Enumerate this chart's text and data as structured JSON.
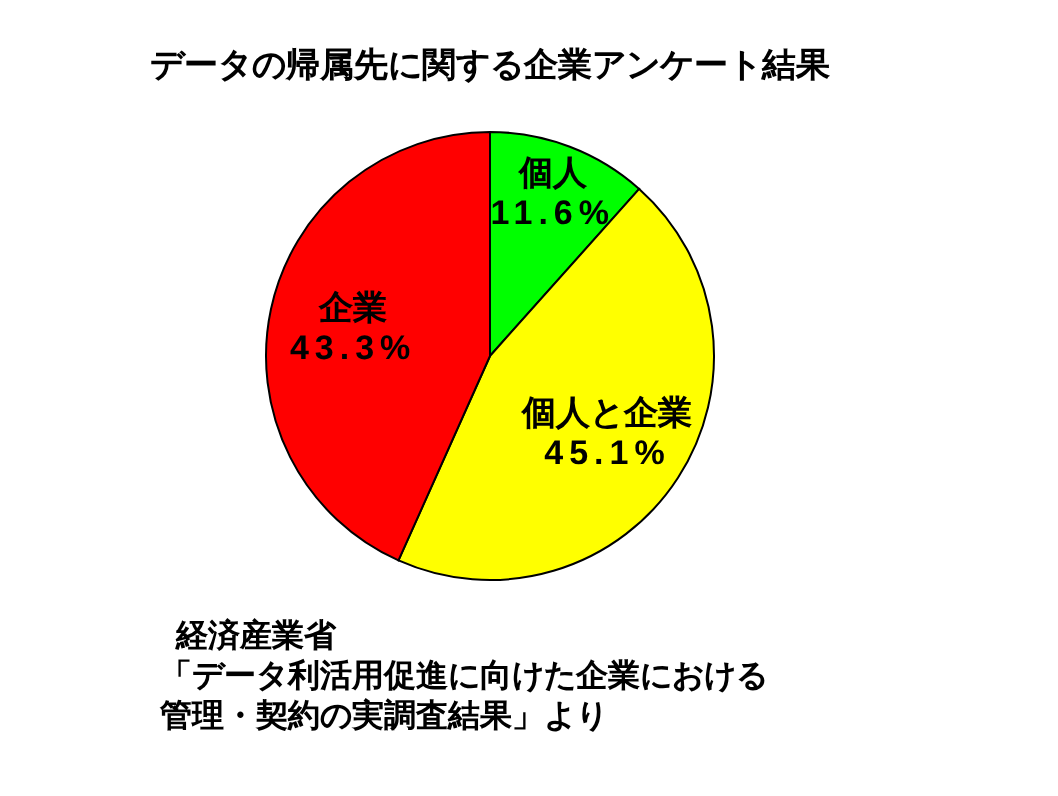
{
  "chart_data": {
    "type": "pie",
    "title": "データの帰属先に関する企業アンケート結果",
    "categories": [
      "個人",
      "個人と企業",
      "企業"
    ],
    "values": [
      11.6,
      45.1,
      43.3
    ],
    "value_labels": [
      "11.6%",
      "45.1%",
      "43.3%"
    ],
    "colors": [
      "#00ff00",
      "#ffff00",
      "#ff0000"
    ],
    "annotations": [
      "経済産業省",
      "「データ利活用促進に向けた企業における",
      "管理・契約の実調査結果」より"
    ]
  }
}
